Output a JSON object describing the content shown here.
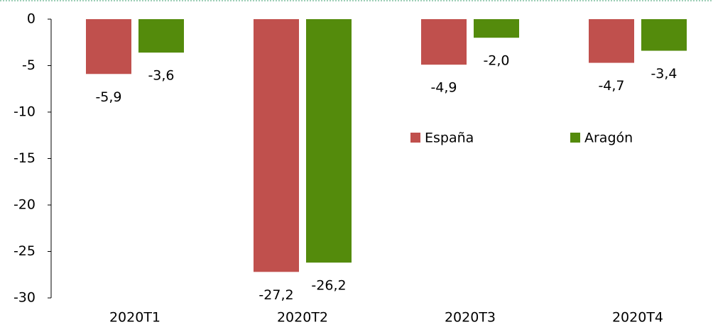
{
  "chart_data": {
    "type": "bar",
    "categories": [
      "2020T1",
      "2020T2",
      "2020T3",
      "2020T4"
    ],
    "series": [
      {
        "name": "España",
        "color": "#c0504d",
        "values": [
          -5.9,
          -27.2,
          -4.9,
          -4.7
        ],
        "value_labels": [
          "-5,9",
          "-27,2",
          "-4,9",
          "-4,7"
        ]
      },
      {
        "name": "Aragón",
        "color": "#548b0c",
        "values": [
          -3.6,
          -26.2,
          -2.0,
          -3.4
        ],
        "value_labels": [
          "-3,6",
          "-26,2",
          "-2,0",
          "-3,4"
        ]
      }
    ],
    "ylim": [
      -30,
      0
    ],
    "yticks": [
      0,
      -5,
      -10,
      -15,
      -20,
      -25,
      -30
    ]
  }
}
